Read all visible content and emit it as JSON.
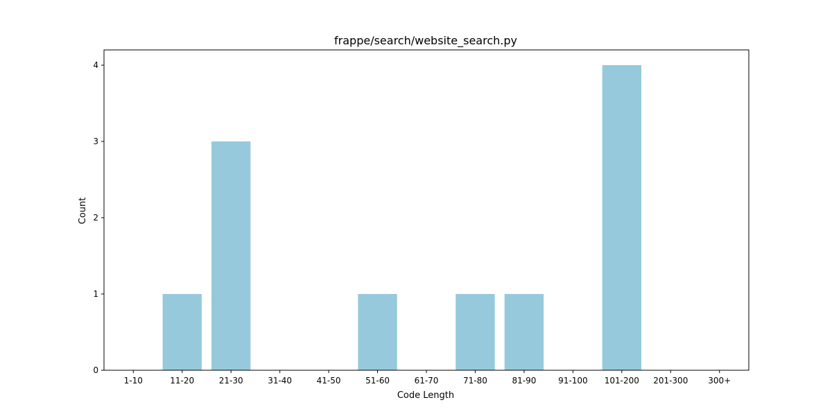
{
  "chart_data": {
    "type": "bar",
    "title": "frappe/search/website_search.py",
    "xlabel": "Code Length",
    "ylabel": "Count",
    "categories": [
      "1-10",
      "11-20",
      "21-30",
      "31-40",
      "41-50",
      "51-60",
      "61-70",
      "71-80",
      "81-90",
      "91-100",
      "101-200",
      "201-300",
      "300+"
    ],
    "values": [
      0,
      1,
      3,
      0,
      0,
      1,
      0,
      1,
      1,
      0,
      4,
      0,
      0
    ],
    "ylim": [
      0,
      4.2
    ],
    "yticks": [
      0,
      1,
      2,
      3,
      4
    ],
    "grid": false,
    "legend": "none",
    "bar_color": "#96c9dc"
  }
}
